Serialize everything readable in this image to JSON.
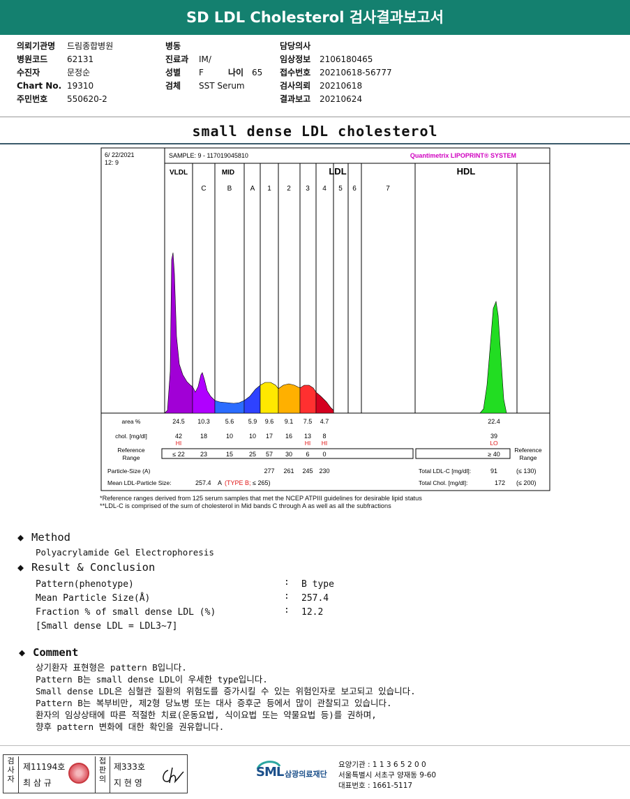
{
  "header": {
    "title": "SD LDL Cholesterol 검사결과보고서"
  },
  "patient_info": {
    "col1": [
      {
        "label": "의뢰기관명",
        "value": "드림종합병원"
      },
      {
        "label": "병원코드",
        "value": "62131"
      },
      {
        "label": "수진자",
        "value": "문정순"
      },
      {
        "label": "Chart No.",
        "value": "19310"
      },
      {
        "label": "주민번호",
        "value": "550620-2"
      }
    ],
    "col2": [
      {
        "label": "병동",
        "value": ""
      },
      {
        "label": "진료과",
        "value": "IM/"
      },
      {
        "label": "성별",
        "value": "F"
      },
      {
        "label": "검체",
        "value": "SST Serum"
      }
    ],
    "age": {
      "label": "나이",
      "value": "65"
    },
    "col3": [
      {
        "label": "담당의사",
        "value": ""
      },
      {
        "label": "임상정보",
        "value": "2106180465"
      },
      {
        "label": "접수번호",
        "value": "20210618-56777"
      },
      {
        "label": "검사의뢰",
        "value": "20210618"
      },
      {
        "label": "결과보고",
        "value": "20210624"
      }
    ]
  },
  "section_title": "small dense LDL cholesterol",
  "chart_data": {
    "type": "area",
    "date": "6/ 22/2021",
    "time": "12:  9",
    "sample": "SAMPLE:    9 - 117019045810",
    "system": "Quantimetrix LIPOPRINT® SYSTEM",
    "groups": [
      "VLDL",
      "MID",
      "LDL",
      "HDL"
    ],
    "bands": [
      "C",
      "B",
      "A",
      "1",
      "2",
      "3",
      "4",
      "5",
      "6",
      "7"
    ],
    "row_labels": {
      "area": "area %",
      "chol": "chol. [mg/dl]",
      "ref": "Reference Range",
      "ref_right": "Reference Range",
      "particle": "Particle-Size (A)",
      "mean": "Mean LDL-Particle Size:"
    },
    "columns": [
      "VLDL",
      "C",
      "B",
      "A",
      "1",
      "2",
      "3",
      "4",
      "HDL"
    ],
    "area": [
      "24.5",
      "10.3",
      "5.6",
      "5.9",
      "9.6",
      "9.1",
      "7.5",
      "4.7",
      "22.4"
    ],
    "chol": [
      "42",
      "18",
      "10",
      "10",
      "17",
      "16",
      "13",
      "8",
      "39"
    ],
    "flags": [
      "HI",
      "",
      "",
      "",
      "",
      "",
      "HI",
      "HI",
      "LO"
    ],
    "reference": [
      "≤ 22",
      "23",
      "15",
      "25",
      "57",
      "30",
      "6",
      "0",
      "≥ 40"
    ],
    "particle_size": [
      "277",
      "261",
      "245",
      "230"
    ],
    "mean_particle": "257.4",
    "mean_particle_unit": "A",
    "mean_type_label": "(TYPE B;",
    "mean_ref": "≤ 265)",
    "total_ldl": {
      "label": "Total LDL-C [mg/dl]:",
      "value": "91",
      "ref": "(≤ 130)"
    },
    "total_chol": {
      "label": "Total Chol. [mg/dl]:",
      "value": "172",
      "ref": "(≤ 200)"
    },
    "colors": {
      "vldl": "#a100d6",
      "mid": "#a100d6",
      "C": "#b000ff",
      "B": "#2b6cff",
      "A": "#2e42ff",
      "1": "#ffe800",
      "2": "#ffb000",
      "3": "#ff3030",
      "4": "#d40020",
      "5": "#d40020",
      "hdl": "#22dd22",
      "sys": "#d000c0"
    }
  },
  "footnotes": [
    "*Reference ranges derived from 125 serum samples that met the NCEP ATPIII guidelines for desirable lipid status",
    "**LDL-C is comprised of the sum of cholesterol in Mid bands C through A as well as all the subfractions"
  ],
  "method": {
    "heading": "Method",
    "text": "Polyacrylamide Gel Electrophoresis"
  },
  "result": {
    "heading": "Result & Conclusion",
    "rows": [
      {
        "label": "Pattern(phenotype)",
        "value": "B type"
      },
      {
        "label": "Mean Particle Size(Å)",
        "value": "257.4"
      },
      {
        "label": "Fraction % of small dense LDL (%)",
        "value": "12.2"
      }
    ],
    "note": "[Small dense LDL = LDL3~7]"
  },
  "comment": {
    "heading": "Comment",
    "lines": [
      "상기환자 표현형은 pattern B입니다.",
      "Pattern B는 small dense LDL이 우세한 type입니다.",
      "Small dense LDL은 심혈관 질환의 위험도를 증가시킬 수 있는 위험인자로 보고되고 있습니다.",
      "Pattern B는 복부비만, 제2형 당뇨병 또는 대사 증후군 등에서 많이 관찰되고 있습니다.",
      "환자의 임상상태에 따른 적절한 치료(운동요법, 식이요법 또는 약물요법 등)를 권하며,",
      "향후 pattern 변화에 대한 확인을 권유합니다."
    ]
  },
  "footer": {
    "inspector_vert": [
      "검",
      "사",
      "자"
    ],
    "inspector_no": "제11194호",
    "inspector_name": "최 삼 규",
    "approver_vert": [
      "접",
      "판",
      "의"
    ],
    "approver_no": "제333호",
    "approver_name": "지 현 영",
    "logo": "SML",
    "org": "삼광의료재단",
    "address_lines": [
      "요양기관 : 1 1 3 6 5 2 0 0",
      "서울특별시 서초구 양재동 9-60",
      "대표번호 : 1661-5117"
    ]
  }
}
